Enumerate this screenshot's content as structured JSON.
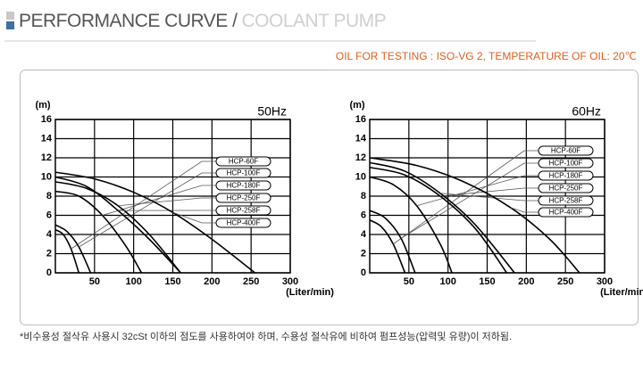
{
  "header": {
    "title": "PERFORMANCE CURVE /",
    "subtitle": "COOLANT PUMP"
  },
  "note": "OIL FOR TESTING : ISO-VG 2, TEMPERATURE OF OIL: 20℃",
  "footnote": "*비수용성 절삭유 사용시 32cSt 이하의 점도를 사용하여야 하며, 수용성 절삭유에 비하여 펌프성능(압력및 유량)이 저하됨.",
  "chart_data": [
    {
      "type": "line",
      "title": "50Hz",
      "y_label": "(m)",
      "x_label": "(Liter/min)",
      "xlim": [
        0,
        300
      ],
      "xticks": [
        50,
        100,
        150,
        200,
        250,
        300
      ],
      "ylim": [
        0,
        16
      ],
      "yticks": [
        0,
        2,
        4,
        6,
        8,
        10,
        12,
        14,
        16
      ],
      "grid": true,
      "series": [
        {
          "name": "HCP-60F",
          "color": "#000000",
          "x": [
            0,
            10,
            20,
            30
          ],
          "values": [
            4.5,
            4,
            2.5,
            0
          ]
        },
        {
          "name": "HCP-100F",
          "color": "#000000",
          "x": [
            0,
            15,
            30,
            45
          ],
          "values": [
            5,
            4.3,
            2.7,
            0
          ]
        },
        {
          "name": "HCP-180F",
          "color": "#000000",
          "x": [
            0,
            30,
            60,
            90,
            110
          ],
          "values": [
            8.5,
            8,
            6,
            2.8,
            0
          ]
        },
        {
          "name": "HCP-250F",
          "color": "#000000",
          "x": [
            0,
            40,
            80,
            120,
            160
          ],
          "values": [
            9.5,
            8.8,
            7,
            4,
            0
          ]
        },
        {
          "name": "HCP-258F",
          "color": "#000000",
          "x": [
            0,
            40,
            80,
            120,
            160
          ],
          "values": [
            10,
            9,
            6.5,
            3.5,
            0
          ]
        },
        {
          "name": "HCP-400F",
          "color": "#000000",
          "x": [
            0,
            50,
            100,
            150,
            200,
            255
          ],
          "values": [
            10.5,
            9.8,
            8.4,
            6.3,
            3.5,
            0
          ]
        }
      ]
    },
    {
      "type": "line",
      "title": "60Hz",
      "y_label": "(m)",
      "x_label": "(Liter/min)",
      "xlim": [
        0,
        300
      ],
      "xticks": [
        50,
        100,
        150,
        200,
        250,
        300
      ],
      "ylim": [
        0,
        16
      ],
      "yticks": [
        0,
        2,
        4,
        6,
        8,
        10,
        12,
        14,
        16
      ],
      "grid": true,
      "series": [
        {
          "name": "HCP-60F",
          "color": "#000000",
          "x": [
            0,
            15,
            30,
            45
          ],
          "values": [
            5.5,
            4.8,
            3,
            0
          ]
        },
        {
          "name": "HCP-100F",
          "color": "#000000",
          "x": [
            0,
            20,
            40,
            58
          ],
          "values": [
            6.5,
            5.7,
            3.6,
            0
          ]
        },
        {
          "name": "HCP-180F",
          "color": "#000000",
          "x": [
            0,
            30,
            60,
            90,
            105
          ],
          "values": [
            10,
            9.2,
            7,
            3,
            0
          ]
        },
        {
          "name": "HCP-250F",
          "color": "#000000",
          "x": [
            0,
            45,
            90,
            135,
            175
          ],
          "values": [
            11,
            10.2,
            8,
            4.6,
            0
          ]
        },
        {
          "name": "HCP-258F",
          "color": "#000000",
          "x": [
            0,
            45,
            90,
            135,
            185
          ],
          "values": [
            11.5,
            10.6,
            8.3,
            5,
            0
          ]
        },
        {
          "name": "HCP-400F",
          "color": "#000000",
          "x": [
            0,
            60,
            120,
            180,
            230,
            268
          ],
          "values": [
            12,
            11.2,
            9.5,
            6.8,
            3.5,
            0
          ]
        }
      ]
    }
  ]
}
